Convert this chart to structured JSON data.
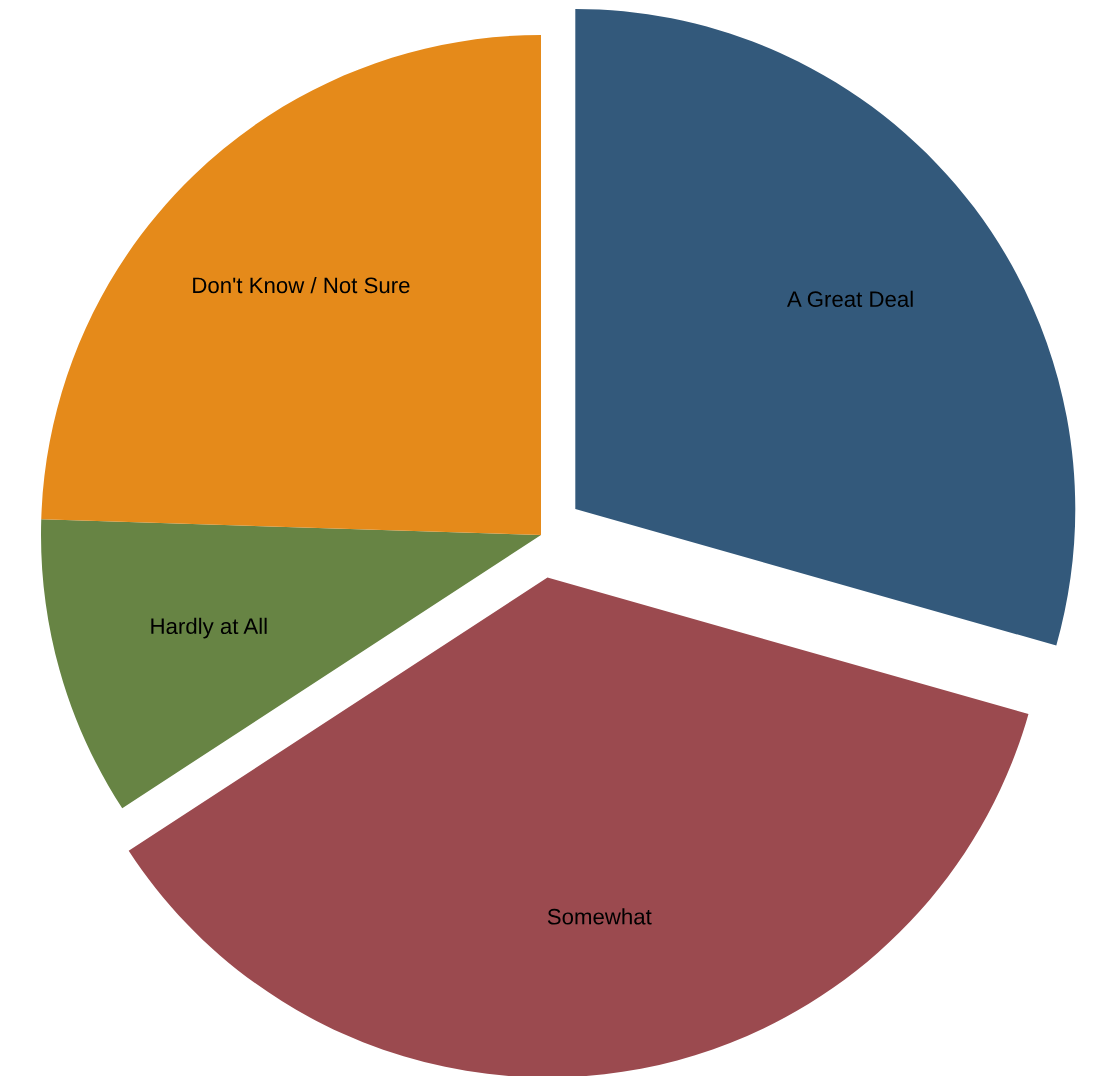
{
  "chart_data": {
    "type": "pie",
    "categories": [
      "A Great Deal",
      "Somewhat",
      "Hardly at All",
      "Don't Know / Not Sure"
    ],
    "values": [
      29.4,
      36.4,
      9.7,
      24.5
    ],
    "colors": [
      "#33597b",
      "#9b4a4f",
      "#678444",
      "#e58a1a"
    ]
  }
}
